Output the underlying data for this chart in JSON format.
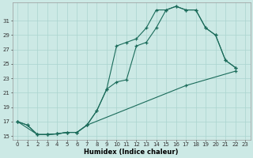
{
  "title": "",
  "xlabel": "Humidex (Indice chaleur)",
  "bg_color": "#cce9e5",
  "grid_color": "#aad4cf",
  "line_color": "#1a6b5a",
  "line1_x": [
    0,
    1,
    2,
    3,
    4,
    5,
    6,
    7,
    8,
    9,
    10,
    11,
    12,
    13,
    14,
    15,
    16,
    17,
    18,
    19,
    20,
    21,
    22
  ],
  "line1_y": [
    17,
    16.5,
    15.2,
    15.2,
    15.3,
    15.5,
    15.5,
    16.5,
    18.5,
    21.5,
    27.5,
    28.0,
    28.5,
    30.0,
    32.5,
    32.5,
    33.0,
    32.5,
    32.5,
    30.0,
    29.0,
    25.5,
    24.5
  ],
  "line2_x": [
    0,
    1,
    2,
    3,
    4,
    5,
    6,
    7,
    8,
    9,
    10,
    11,
    12,
    13,
    14,
    15,
    16,
    17,
    18,
    19,
    20,
    21,
    22
  ],
  "line2_y": [
    17,
    16.5,
    15.2,
    15.2,
    15.3,
    15.5,
    15.5,
    16.5,
    18.5,
    21.5,
    22.5,
    22.8,
    27.5,
    28.0,
    30.0,
    32.5,
    33.0,
    32.5,
    32.5,
    30.0,
    29.0,
    25.5,
    24.5
  ],
  "line3_x": [
    0,
    2,
    3,
    4,
    5,
    6,
    7,
    17,
    22
  ],
  "line3_y": [
    17,
    15.2,
    15.2,
    15.3,
    15.5,
    15.5,
    16.5,
    22.0,
    24.0
  ],
  "ylim": [
    14.5,
    33.5
  ],
  "xlim": [
    -0.5,
    23.5
  ],
  "yticks": [
    15,
    17,
    19,
    21,
    23,
    25,
    27,
    29,
    31
  ],
  "xticks": [
    0,
    1,
    2,
    3,
    4,
    5,
    6,
    7,
    8,
    9,
    10,
    11,
    12,
    13,
    14,
    15,
    16,
    17,
    18,
    19,
    20,
    21,
    22,
    23
  ],
  "xlabel_fontsize": 6.0,
  "tick_fontsize": 5.0
}
